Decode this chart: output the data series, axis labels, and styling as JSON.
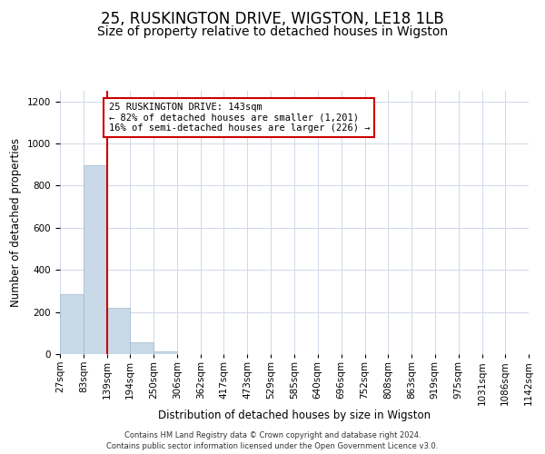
{
  "title": "25, RUSKINGTON DRIVE, WIGSTON, LE18 1LB",
  "subtitle": "Size of property relative to detached houses in Wigston",
  "xlabel": "Distribution of detached houses by size in Wigston",
  "ylabel": "Number of detached properties",
  "footer_line1": "Contains HM Land Registry data © Crown copyright and database right 2024.",
  "footer_line2": "Contains public sector information licensed under the Open Government Licence v3.0.",
  "bin_edges": [
    27,
    83,
    139,
    194,
    250,
    306,
    362,
    417,
    473,
    529,
    585,
    640,
    696,
    752,
    808,
    863,
    919,
    975,
    1031,
    1086,
    1142
  ],
  "bin_labels": [
    "27sqm",
    "83sqm",
    "139sqm",
    "194sqm",
    "250sqm",
    "306sqm",
    "362sqm",
    "417sqm",
    "473sqm",
    "529sqm",
    "585sqm",
    "640sqm",
    "696sqm",
    "752sqm",
    "808sqm",
    "863sqm",
    "919sqm",
    "975sqm",
    "1031sqm",
    "1086sqm",
    "1142sqm"
  ],
  "bar_heights": [
    285,
    895,
    220,
    55,
    15,
    0,
    0,
    0,
    0,
    0,
    0,
    0,
    0,
    0,
    0,
    0,
    0,
    0,
    0,
    0
  ],
  "bar_color": "#c9d9e8",
  "bar_edge_color": "#a0b8cc",
  "grid_color": "#d0d8e8",
  "property_line_x": 139,
  "property_line_color": "#cc0000",
  "ylim": [
    0,
    1250
  ],
  "yticks": [
    0,
    200,
    400,
    600,
    800,
    1000,
    1200
  ],
  "annotation_text": "25 RUSKINGTON DRIVE: 143sqm\n← 82% of detached houses are smaller (1,201)\n16% of semi-detached houses are larger (226) →",
  "annotation_box_color": "#cc0000",
  "title_fontsize": 12,
  "subtitle_fontsize": 10,
  "axis_label_fontsize": 8.5,
  "tick_fontsize": 7.5,
  "annotation_fontsize": 7.5,
  "footer_fontsize": 6.0
}
